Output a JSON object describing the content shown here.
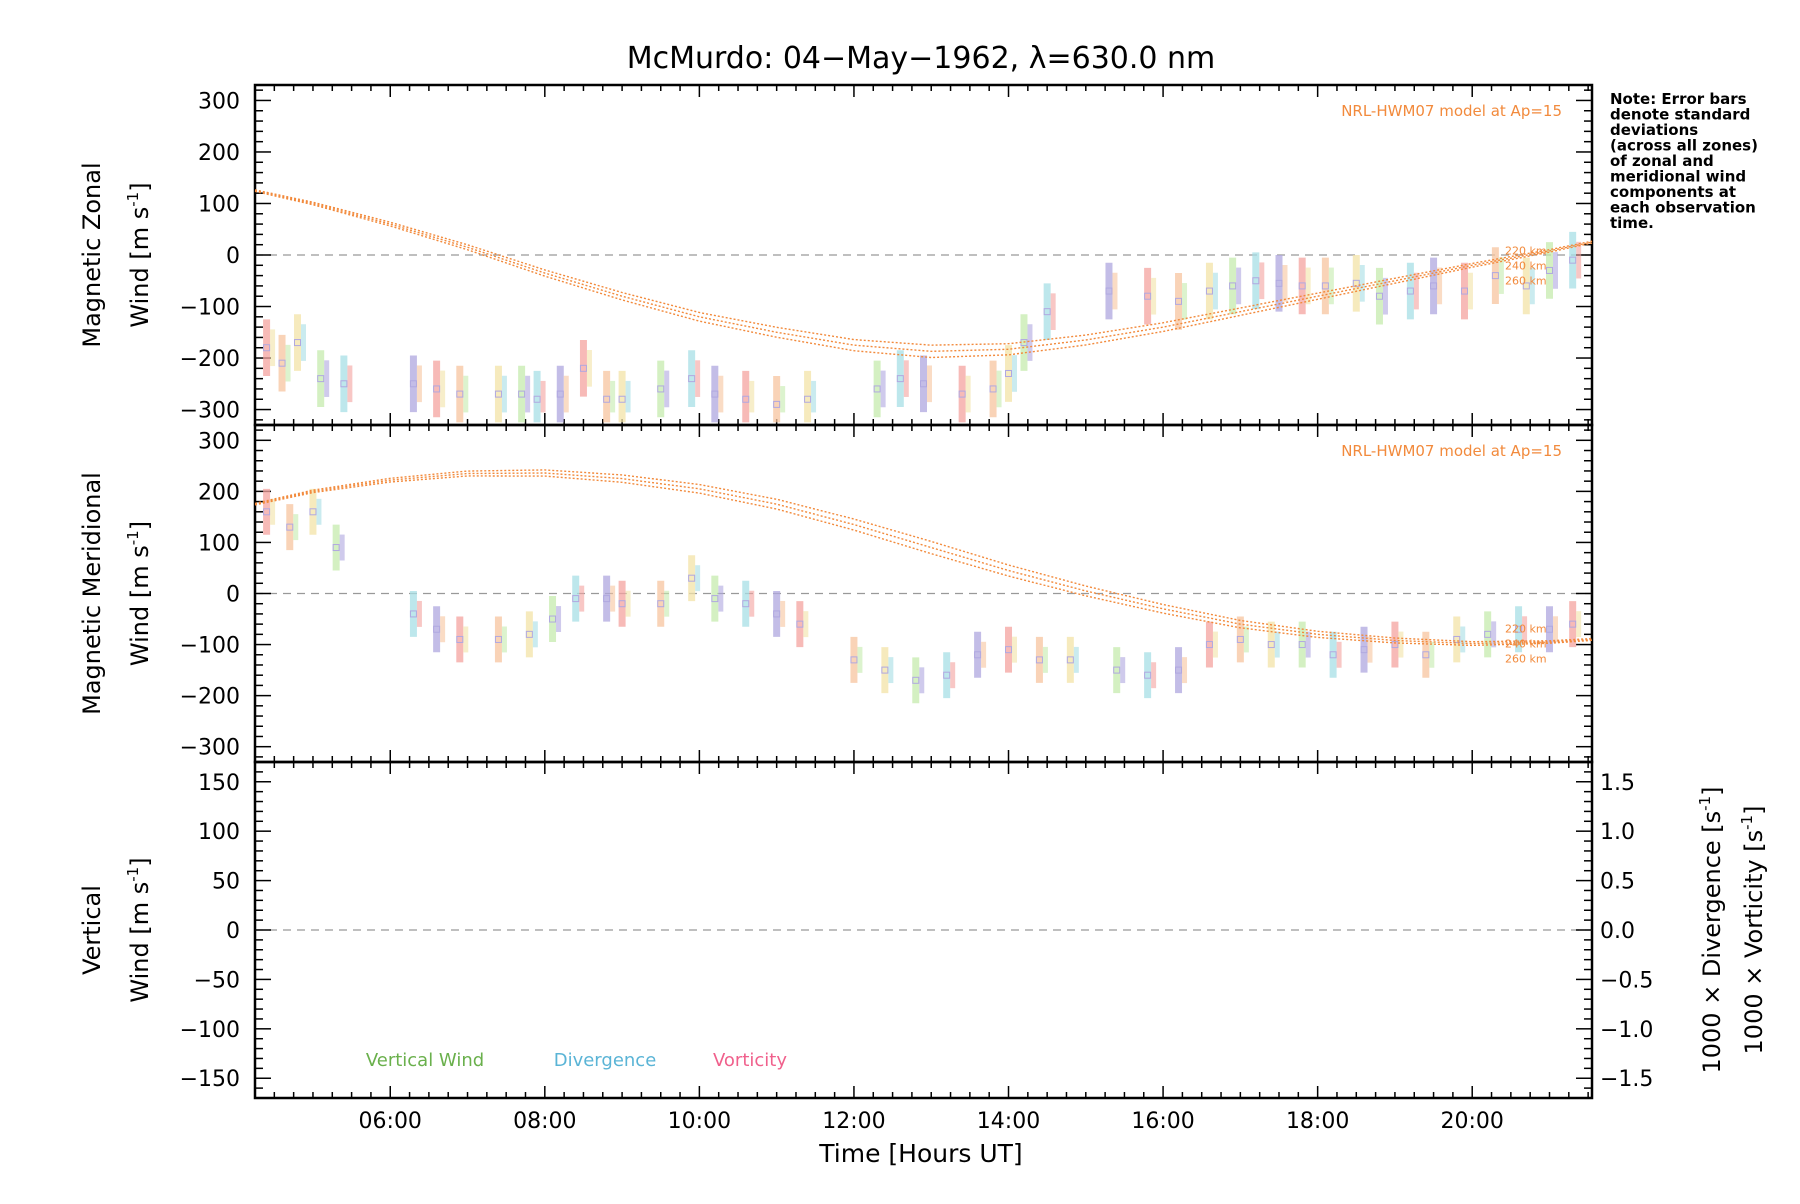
{
  "chart_data": {
    "type": "scatter",
    "title": "McMurdo: 04−May−1962, λ=630.0 nm",
    "xlabel": "Time [Hours UT]",
    "xlim": [
      4.25,
      21.55
    ],
    "x_ticks": [
      6,
      8,
      10,
      12,
      14,
      16,
      18,
      20
    ],
    "x_tick_labels": [
      "06:00",
      "08:00",
      "10:00",
      "12:00",
      "14:00",
      "16:00",
      "18:00",
      "20:00"
    ],
    "note": [
      "Note: Error bars",
      "denote standard",
      "deviations",
      "(across all zones)",
      "of zonal and",
      "meridional wind",
      "components at",
      "each observation",
      "time."
    ],
    "model_label": "NRL-HWM07 model at Ap=15",
    "colors": {
      "model": "#f28a3c",
      "zero_line": "#999999",
      "vertical": "#6ab04c",
      "divergence": "#5ab4d6",
      "vorticity": "#f0608c",
      "error": "#b0a8e0"
    },
    "panels": [
      {
        "id": "zonal",
        "ylabel_line1": "Magnetic Zonal",
        "ylabel_line2": "Wind [m s",
        "ylabel_sup": "-1",
        "ylabel_close": "]",
        "ylim": [
          -330,
          330
        ],
        "y_ticks": [
          -300,
          -200,
          -100,
          0,
          100,
          200,
          300
        ],
        "y_tick_labels": [
          "−300",
          "−200",
          "−100",
          "0",
          "100",
          "200",
          "300"
        ],
        "altitudes": [
          "220 km",
          "240 km",
          "260 km"
        ],
        "model_curve": [
          [
            4.25,
            125
          ],
          [
            5,
            100
          ],
          [
            6,
            60
          ],
          [
            7,
            15
          ],
          [
            8,
            -35
          ],
          [
            9,
            -80
          ],
          [
            10,
            -120
          ],
          [
            11,
            -150
          ],
          [
            12,
            -175
          ],
          [
            13,
            -187
          ],
          [
            14,
            -183
          ],
          [
            15,
            -165
          ],
          [
            16,
            -140
          ],
          [
            17,
            -110
          ],
          [
            18,
            -80
          ],
          [
            19,
            -50
          ],
          [
            20,
            -20
          ],
          [
            21,
            8
          ],
          [
            21.55,
            25
          ]
        ],
        "observations": [
          [
            4.4,
            -180
          ],
          [
            4.6,
            -210
          ],
          [
            4.8,
            -170
          ],
          [
            5.1,
            -240
          ],
          [
            5.4,
            -250
          ],
          [
            6.3,
            -250
          ],
          [
            6.6,
            -260
          ],
          [
            6.9,
            -270
          ],
          [
            7.4,
            -270
          ],
          [
            7.7,
            -270
          ],
          [
            7.9,
            -280
          ],
          [
            8.2,
            -270
          ],
          [
            8.5,
            -220
          ],
          [
            8.8,
            -280
          ],
          [
            9.0,
            -280
          ],
          [
            9.5,
            -260
          ],
          [
            9.9,
            -240
          ],
          [
            10.2,
            -270
          ],
          [
            10.6,
            -280
          ],
          [
            11.0,
            -290
          ],
          [
            11.4,
            -280
          ],
          [
            12.3,
            -260
          ],
          [
            12.6,
            -240
          ],
          [
            12.9,
            -250
          ],
          [
            13.4,
            -270
          ],
          [
            13.8,
            -260
          ],
          [
            14.0,
            -230
          ],
          [
            14.2,
            -170
          ],
          [
            14.5,
            -110
          ],
          [
            15.3,
            -70
          ],
          [
            15.8,
            -80
          ],
          [
            16.2,
            -90
          ],
          [
            16.6,
            -70
          ],
          [
            16.9,
            -60
          ],
          [
            17.2,
            -50
          ],
          [
            17.5,
            -55
          ],
          [
            17.8,
            -60
          ],
          [
            18.1,
            -60
          ],
          [
            18.5,
            -55
          ],
          [
            18.8,
            -80
          ],
          [
            19.2,
            -70
          ],
          [
            19.5,
            -60
          ],
          [
            19.9,
            -70
          ],
          [
            20.3,
            -40
          ],
          [
            20.7,
            -60
          ],
          [
            21.0,
            -30
          ],
          [
            21.3,
            -10
          ]
        ]
      },
      {
        "id": "meridional",
        "ylabel_line1": "Magnetic Meridional",
        "ylabel_line2": "Wind [m s",
        "ylabel_sup": "-1",
        "ylabel_close": "]",
        "ylim": [
          -330,
          330
        ],
        "y_ticks": [
          -300,
          -200,
          -100,
          0,
          100,
          200,
          300
        ],
        "y_tick_labels": [
          "−300",
          "−200",
          "−100",
          "0",
          "100",
          "200",
          "300"
        ],
        "altitudes": [
          "220 km",
          "240 km",
          "260 km"
        ],
        "model_curve": [
          [
            4.25,
            175
          ],
          [
            5,
            200
          ],
          [
            6,
            222
          ],
          [
            7,
            235
          ],
          [
            8,
            236
          ],
          [
            9,
            225
          ],
          [
            10,
            205
          ],
          [
            11,
            175
          ],
          [
            12,
            135
          ],
          [
            13,
            90
          ],
          [
            14,
            45
          ],
          [
            15,
            5
          ],
          [
            16,
            -30
          ],
          [
            17,
            -60
          ],
          [
            18,
            -80
          ],
          [
            19,
            -92
          ],
          [
            20,
            -98
          ],
          [
            21,
            -95
          ],
          [
            21.55,
            -90
          ]
        ],
        "observations": [
          [
            4.4,
            160
          ],
          [
            4.7,
            130
          ],
          [
            5.0,
            160
          ],
          [
            5.3,
            90
          ],
          [
            6.3,
            -40
          ],
          [
            6.6,
            -70
          ],
          [
            6.9,
            -90
          ],
          [
            7.4,
            -90
          ],
          [
            7.8,
            -80
          ],
          [
            8.1,
            -50
          ],
          [
            8.4,
            -10
          ],
          [
            8.8,
            -10
          ],
          [
            9.0,
            -20
          ],
          [
            9.5,
            -20
          ],
          [
            9.9,
            30
          ],
          [
            10.2,
            -10
          ],
          [
            10.6,
            -20
          ],
          [
            11.0,
            -40
          ],
          [
            11.3,
            -60
          ],
          [
            12.0,
            -130
          ],
          [
            12.4,
            -150
          ],
          [
            12.8,
            -170
          ],
          [
            13.2,
            -160
          ],
          [
            13.6,
            -120
          ],
          [
            14.0,
            -110
          ],
          [
            14.4,
            -130
          ],
          [
            14.8,
            -130
          ],
          [
            15.4,
            -150
          ],
          [
            15.8,
            -160
          ],
          [
            16.2,
            -150
          ],
          [
            16.6,
            -100
          ],
          [
            17.0,
            -90
          ],
          [
            17.4,
            -100
          ],
          [
            17.8,
            -100
          ],
          [
            18.2,
            -120
          ],
          [
            18.6,
            -110
          ],
          [
            19.0,
            -100
          ],
          [
            19.4,
            -120
          ],
          [
            19.8,
            -90
          ],
          [
            20.2,
            -80
          ],
          [
            20.6,
            -70
          ],
          [
            21.0,
            -70
          ],
          [
            21.3,
            -60
          ]
        ]
      },
      {
        "id": "vertical",
        "ylabel_line1": "Vertical",
        "ylabel_line2": "Wind [m s",
        "ylabel_sup": "-1",
        "ylabel_close": "]",
        "ylim": [
          -170,
          170
        ],
        "y_ticks": [
          -150,
          -100,
          -50,
          0,
          50,
          100,
          150
        ],
        "y_tick_labels": [
          "−150",
          "−100",
          "−50",
          "0",
          "50",
          "100",
          "150"
        ],
        "right_ylim": [
          -1.7,
          1.7
        ],
        "right_ticks": [
          -1.5,
          -1.0,
          -0.5,
          0.0,
          0.5,
          1.0,
          1.5
        ],
        "right_tick_labels": [
          "−1.5",
          "−1.0",
          "−0.5",
          "0.0",
          "0.5",
          "1.0",
          "1.5"
        ],
        "right_label_div": "1000 × Divergence [s",
        "right_label_vort": "1000 × Vorticity [s",
        "right_label_sup": "-1",
        "right_label_close": "]",
        "legend": [
          "Vertical Wind",
          "Divergence",
          "Vorticity"
        ]
      }
    ]
  }
}
